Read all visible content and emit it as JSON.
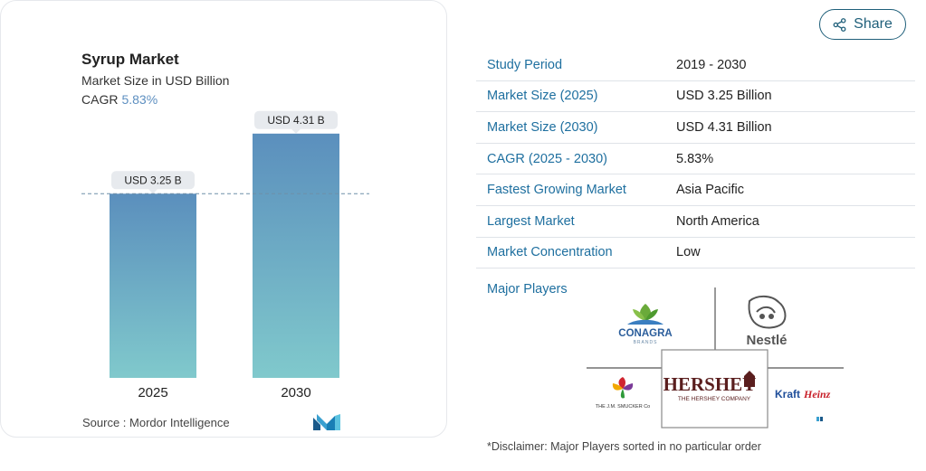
{
  "share": {
    "label": "Share",
    "icon": "share-icon"
  },
  "chart_data": {
    "type": "bar",
    "title": "Syrup Market",
    "subtitle": "Market Size in USD Billion",
    "cagr_label": "CAGR",
    "cagr_value": "5.83%",
    "categories": [
      "2025",
      "2030"
    ],
    "values": [
      3.25,
      4.31
    ],
    "data_labels": [
      "USD 3.25 B",
      "USD 4.31 B"
    ],
    "ylim": [
      0,
      5.2
    ],
    "colors": {
      "top": "#5b8fbd",
      "bottom": "#80c9cc",
      "label_bg": "#e7eaee"
    }
  },
  "source": "Source :  Mordor Intelligence",
  "table": {
    "rows": [
      {
        "key": "Study Period",
        "value": "2019 - 2030"
      },
      {
        "key": "Market Size (2025)",
        "value": "USD 3.25 Billion"
      },
      {
        "key": "Market Size (2030)",
        "value": "USD 4.31 Billion"
      },
      {
        "key": "CAGR (2025 - 2030)",
        "value": "5.83%"
      },
      {
        "key": "Fastest Growing Market",
        "value": "Asia Pacific"
      },
      {
        "key": "Largest Market",
        "value": "North America"
      },
      {
        "key": "Market Concentration",
        "value": "Low"
      }
    ]
  },
  "players": {
    "label": "Major Players",
    "conagra": {
      "name": "CONAGRA",
      "tag": "BRANDS"
    },
    "nestle": "Nestlé",
    "hershey": {
      "name": "HERSHEY",
      "tag": "THE HERSHEY COMPANY"
    },
    "smucker": "THE J.M. SMUCKER Co",
    "kraftheinz": {
      "a": "Kraft",
      "b": "Heinz"
    }
  },
  "disclaimer": "*Disclaimer: Major Players sorted in no particular order"
}
